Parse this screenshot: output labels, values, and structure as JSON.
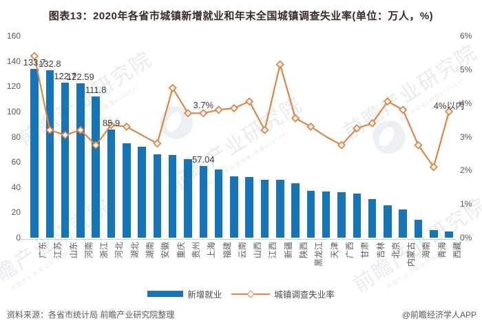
{
  "title": "图表13：2020年各省市城镇新增就业和年末全国城镇调查失业率(单位：万人，%)",
  "chart_data": {
    "type": "bar+line",
    "categories": [
      "广东",
      "江苏",
      "山东",
      "河南",
      "浙江",
      "河北",
      "湖北",
      "湖南",
      "安徽",
      "重庆",
      "贵州",
      "上海",
      "福建",
      "云南",
      "山西",
      "江西",
      "新疆",
      "陕西",
      "黑龙江",
      "天津",
      "广西",
      "甘肃",
      "吉林",
      "北京",
      "内蒙古",
      "海南",
      "青海",
      "西藏"
    ],
    "left_axis": {
      "min": 0,
      "max": 160,
      "step": 20,
      "ticks": [
        "0",
        "20",
        "40",
        "60",
        "80",
        "100",
        "120",
        "140",
        "160"
      ]
    },
    "right_axis": {
      "min": 0,
      "max": 6,
      "step": 1,
      "ticks": [
        "0%",
        "1%",
        "2%",
        "3%",
        "4%",
        "5%",
        "6%"
      ]
    },
    "grid": "off",
    "legend_position": "bottom-center",
    "series": [
      {
        "name": "新增就业",
        "type": "bar",
        "axis": "left",
        "color": "#1575B8",
        "values": [
          133.7,
          132.8,
          122.7,
          122.59,
          111.8,
          85.9,
          75,
          72,
          66,
          65.5,
          62,
          57.04,
          54,
          48.5,
          48,
          46,
          45.8,
          43,
          37,
          36.8,
          36,
          35,
          30.5,
          25.5,
          22.5,
          14,
          6,
          5
        ],
        "labels": {
          "0": "133.7",
          "1": "132.8",
          "2": "122.7",
          "3": "122.59",
          "4": "111.8",
          "5": "85.9",
          "11": "57.04"
        }
      },
      {
        "name": "城镇调查失业率",
        "type": "line",
        "axis": "right",
        "color": "#DE8544",
        "marker": "hollow-diamond",
        "values": [
          5.4,
          3.2,
          3.05,
          3.2,
          2.75,
          3.35,
          3.3,
          3.05,
          2.8,
          4.45,
          3.7,
          3.7,
          3.8,
          3.85,
          4.05,
          3.2,
          5.15,
          3.55,
          3.3,
          3.0,
          2.75,
          3.25,
          3.4,
          4.05,
          3.8,
          2.75,
          2.1,
          3.75
        ],
        "no_marker_indices": [
          7,
          19
        ],
        "labels": {
          "11": "3.7%",
          "27": "4%以内"
        }
      }
    ]
  },
  "footer": {
    "source": "资料来源：各省市统计局 前瞻产业研究院整理",
    "credit": "@前瞻经济学人APP"
  },
  "watermark": {
    "text": "前瞻产业研究院",
    "subtext": "中国产业咨询领导者(股票839599)"
  }
}
